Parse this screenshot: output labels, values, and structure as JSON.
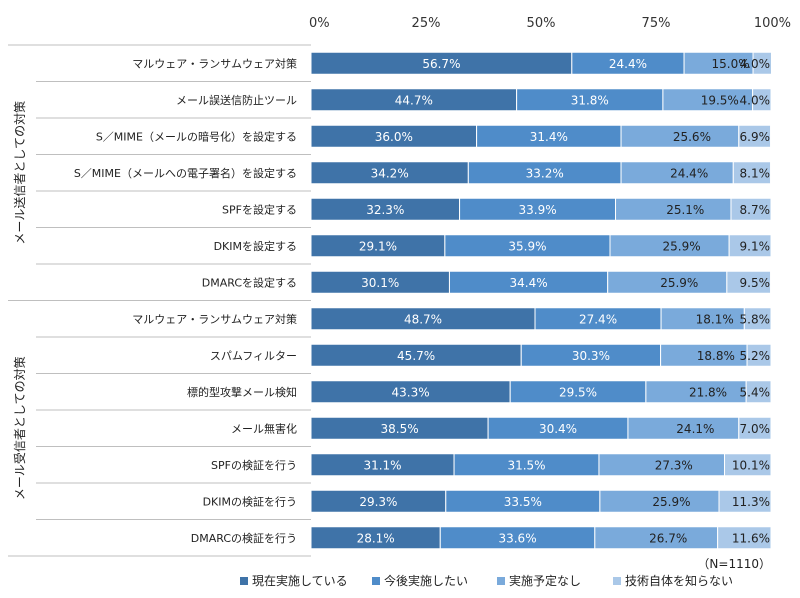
{
  "chart_data": {
    "type": "bar",
    "orientation": "horizontal",
    "stacked": true,
    "x_ticks": [
      "0%",
      "25%",
      "50%",
      "75%",
      "100%"
    ],
    "xlim": [
      0,
      100
    ],
    "groups": [
      {
        "label": "メール送信者としての対策",
        "categories": [
          "マルウェア・ランサムウェア対策",
          "メール誤送信防止ツール",
          "S／MIME（メールの暗号化）を設定する",
          "S／MIME（メールへの電子署名）を設定する",
          "SPFを設定する",
          "DKIMを設定する",
          "DMARCを設定する"
        ],
        "series": [
          {
            "name": "現在実施している",
            "values": [
              56.7,
              44.7,
              36.0,
              34.2,
              32.3,
              29.1,
              30.1
            ]
          },
          {
            "name": "今後実施したい",
            "values": [
              24.4,
              31.8,
              31.4,
              33.2,
              33.9,
              35.9,
              34.4
            ]
          },
          {
            "name": "実施予定なし",
            "values": [
              15.0,
              19.5,
              25.6,
              24.4,
              25.1,
              25.9,
              25.9
            ]
          },
          {
            "name": "技術自体を知らない",
            "values": [
              4.0,
              4.0,
              6.9,
              8.1,
              8.7,
              9.1,
              9.5
            ]
          }
        ]
      },
      {
        "label": "メール受信者としての対策",
        "categories": [
          "マルウェア・ランサムウェア対策",
          "スパムフィルター",
          "標的型攻撃メール検知",
          "メール無害化",
          "SPFの検証を行う",
          "DKIMの検証を行う",
          "DMARCの検証を行う"
        ],
        "series": [
          {
            "name": "現在実施している",
            "values": [
              48.7,
              45.7,
              43.3,
              38.5,
              31.1,
              29.3,
              28.1
            ]
          },
          {
            "name": "今後実施したい",
            "values": [
              27.4,
              30.3,
              29.5,
              30.4,
              31.5,
              33.5,
              33.6
            ]
          },
          {
            "name": "実施予定なし",
            "values": [
              18.1,
              18.8,
              21.8,
              24.1,
              27.3,
              25.9,
              26.7
            ]
          },
          {
            "name": "技術自体を知らない",
            "values": [
              5.8,
              5.2,
              5.4,
              7.0,
              10.1,
              11.3,
              11.6
            ]
          }
        ]
      }
    ],
    "legend": [
      {
        "name": "現在実施している",
        "color": "#3f73a8"
      },
      {
        "name": "今後実施したい",
        "color": "#4f8cc9"
      },
      {
        "name": "実施予定なし",
        "color": "#7aaadb"
      },
      {
        "name": "技術自体を知らない",
        "color": "#aac8e8"
      }
    ],
    "legend_position": "bottom",
    "note": "（N=1110）",
    "value_suffix": "%"
  }
}
